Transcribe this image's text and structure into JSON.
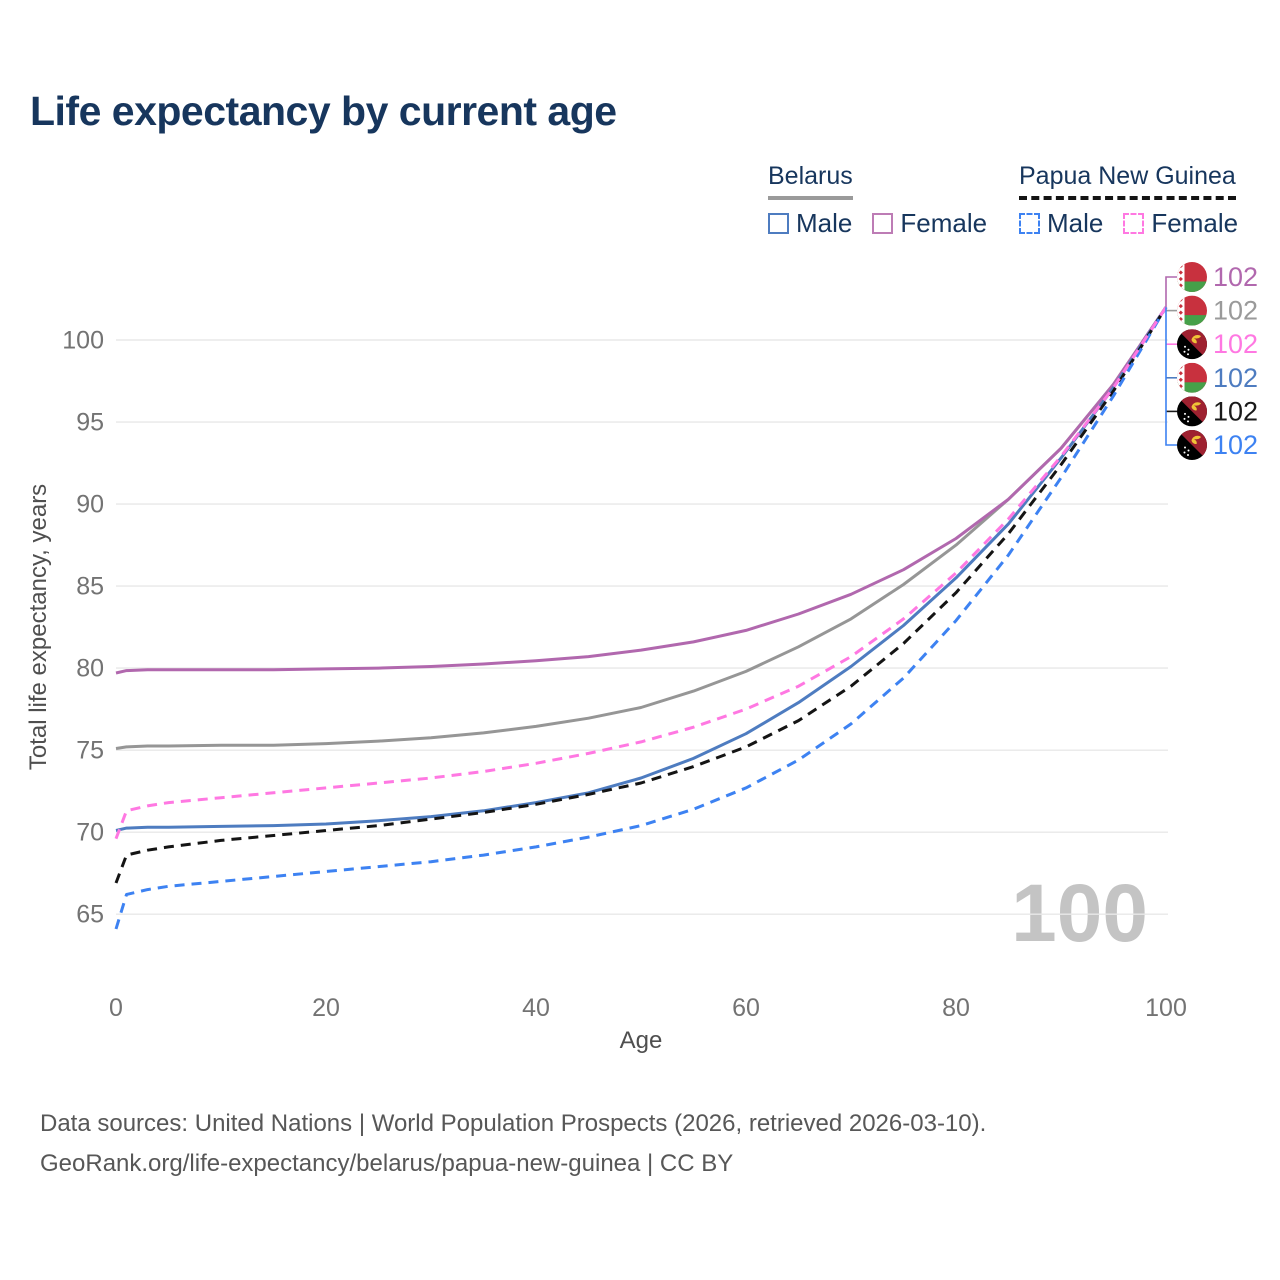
{
  "page": {
    "title": "Life expectancy by current age",
    "footer_line1": "Data sources: United Nations | World Population Prospects (2026, retrieved 2026-03-10).",
    "footer_line2": "GeoRank.org/life-expectancy/belarus/papua-new-guinea | CC BY"
  },
  "watermark": "100",
  "legend": {
    "groups": [
      {
        "country": "Belarus",
        "style": "solid",
        "underline_color": "#9a9a9a",
        "items": [
          {
            "label": "Male",
            "color": "#4e7cc0",
            "dashed": false
          },
          {
            "label": "Female",
            "color": "#bd7cb5",
            "dashed": false
          }
        ]
      },
      {
        "country": "Papua New Guinea",
        "style": "dashed",
        "underline_color": "#141414",
        "items": [
          {
            "label": "Male",
            "color": "#3d82f2",
            "dashed": true
          },
          {
            "label": "Female",
            "color": "#ff78e2",
            "dashed": true
          }
        ]
      }
    ]
  },
  "end_labels": [
    {
      "series": "Belarus Female",
      "flag": "belarus",
      "value": "102",
      "color": "#b168ae"
    },
    {
      "series": "Belarus",
      "flag": "belarus",
      "value": "102",
      "color": "#9a9a9a"
    },
    {
      "series": "Papua New Guinea Female",
      "flag": "png",
      "value": "102",
      "color": "#ff78e2"
    },
    {
      "series": "Belarus Male",
      "flag": "belarus",
      "value": "102",
      "color": "#4e7cc0"
    },
    {
      "series": "Papua New Guinea",
      "flag": "png",
      "value": "102",
      "color": "#1a1a1a"
    },
    {
      "series": "Papua New Guinea Male",
      "flag": "png",
      "value": "102",
      "color": "#3d82f2"
    }
  ],
  "chart_data": {
    "type": "line",
    "title": "Life expectancy by current age",
    "xlabel": "Age",
    "ylabel": "Total life expectancy, years",
    "xlim": [
      0,
      100
    ],
    "ylim": [
      63,
      103
    ],
    "grid": "horizontal",
    "legend_position": "top-right",
    "xticks": [
      0,
      20,
      40,
      60,
      80,
      100
    ],
    "yticks": [
      100,
      95,
      90,
      85,
      80,
      75,
      70,
      65
    ],
    "x": [
      0,
      1,
      3,
      5,
      10,
      15,
      20,
      25,
      30,
      35,
      40,
      45,
      50,
      55,
      60,
      65,
      70,
      75,
      80,
      85,
      90,
      95,
      100
    ],
    "series": [
      {
        "id": "belarus-total",
        "name": "Belarus",
        "country": "Belarus",
        "sex": "Both",
        "color": "#969696",
        "dashed": false,
        "values": [
          75.1,
          75.2,
          75.25,
          75.25,
          75.3,
          75.3,
          75.4,
          75.55,
          75.75,
          76.05,
          76.45,
          76.95,
          77.6,
          78.6,
          79.8,
          81.3,
          83.0,
          85.1,
          87.5,
          90.3,
          93.4,
          97.3,
          102
        ]
      },
      {
        "id": "belarus-female",
        "name": "Belarus Female",
        "country": "Belarus",
        "sex": "Female",
        "color": "#b168ae",
        "dashed": false,
        "values": [
          79.7,
          79.85,
          79.9,
          79.9,
          79.9,
          79.9,
          79.95,
          80.0,
          80.1,
          80.25,
          80.45,
          80.7,
          81.1,
          81.6,
          82.3,
          83.3,
          84.5,
          86.0,
          87.9,
          90.3,
          93.4,
          97.3,
          102
        ]
      },
      {
        "id": "belarus-male",
        "name": "Belarus Male",
        "country": "Belarus",
        "sex": "Male",
        "color": "#4e7cc0",
        "dashed": false,
        "values": [
          70.1,
          70.25,
          70.3,
          70.3,
          70.35,
          70.4,
          70.5,
          70.7,
          70.95,
          71.3,
          71.8,
          72.4,
          73.3,
          74.5,
          76.0,
          77.9,
          80.1,
          82.6,
          85.5,
          88.8,
          92.8,
          97.1,
          102
        ]
      },
      {
        "id": "png-total",
        "name": "Papua New Guinea",
        "country": "Papua New Guinea",
        "sex": "Both",
        "color": "#141414",
        "dashed": true,
        "values": [
          66.9,
          68.6,
          68.9,
          69.1,
          69.5,
          69.8,
          70.1,
          70.4,
          70.8,
          71.2,
          71.7,
          72.3,
          73.0,
          74.0,
          75.2,
          76.8,
          78.9,
          81.5,
          84.6,
          88.2,
          92.4,
          96.9,
          102
        ]
      },
      {
        "id": "png-male",
        "name": "Papua New Guinea Male",
        "country": "Papua New Guinea",
        "sex": "Male",
        "color": "#3d82f2",
        "dashed": true,
        "values": [
          64.1,
          66.2,
          66.5,
          66.7,
          67.0,
          67.3,
          67.6,
          67.9,
          68.2,
          68.6,
          69.1,
          69.7,
          70.4,
          71.4,
          72.7,
          74.4,
          76.6,
          79.4,
          82.9,
          86.9,
          91.6,
          96.6,
          102
        ]
      },
      {
        "id": "png-female",
        "name": "Papua New Guinea Female",
        "country": "Papua New Guinea",
        "sex": "Female",
        "color": "#ff78e2",
        "dashed": true,
        "values": [
          69.6,
          71.3,
          71.6,
          71.8,
          72.1,
          72.4,
          72.7,
          73.0,
          73.3,
          73.7,
          74.2,
          74.8,
          75.5,
          76.4,
          77.5,
          78.9,
          80.7,
          83.0,
          85.8,
          89.1,
          92.9,
          97.1,
          102
        ]
      }
    ]
  }
}
